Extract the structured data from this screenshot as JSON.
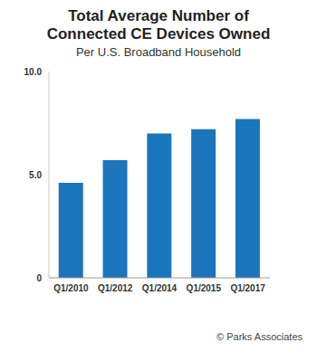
{
  "chart_data": {
    "type": "bar",
    "title": "Total Average Number of Connected CE Devices Owned",
    "subtitle": "Per U.S. Broadband Household",
    "source": "© Parks Associates",
    "categories": [
      "Q1/2010",
      "Q1/2012",
      "Q1/2014",
      "Q1/2015",
      "Q1/2017"
    ],
    "values": [
      4.6,
      5.7,
      7.0,
      7.2,
      7.7
    ],
    "color": "#1b75bc",
    "ylim": [
      0,
      10
    ],
    "yticks": [
      0,
      {
        "value": 5,
        "label": "5.0"
      },
      {
        "value": 10,
        "label": "10.0"
      }
    ],
    "grid": false
  }
}
